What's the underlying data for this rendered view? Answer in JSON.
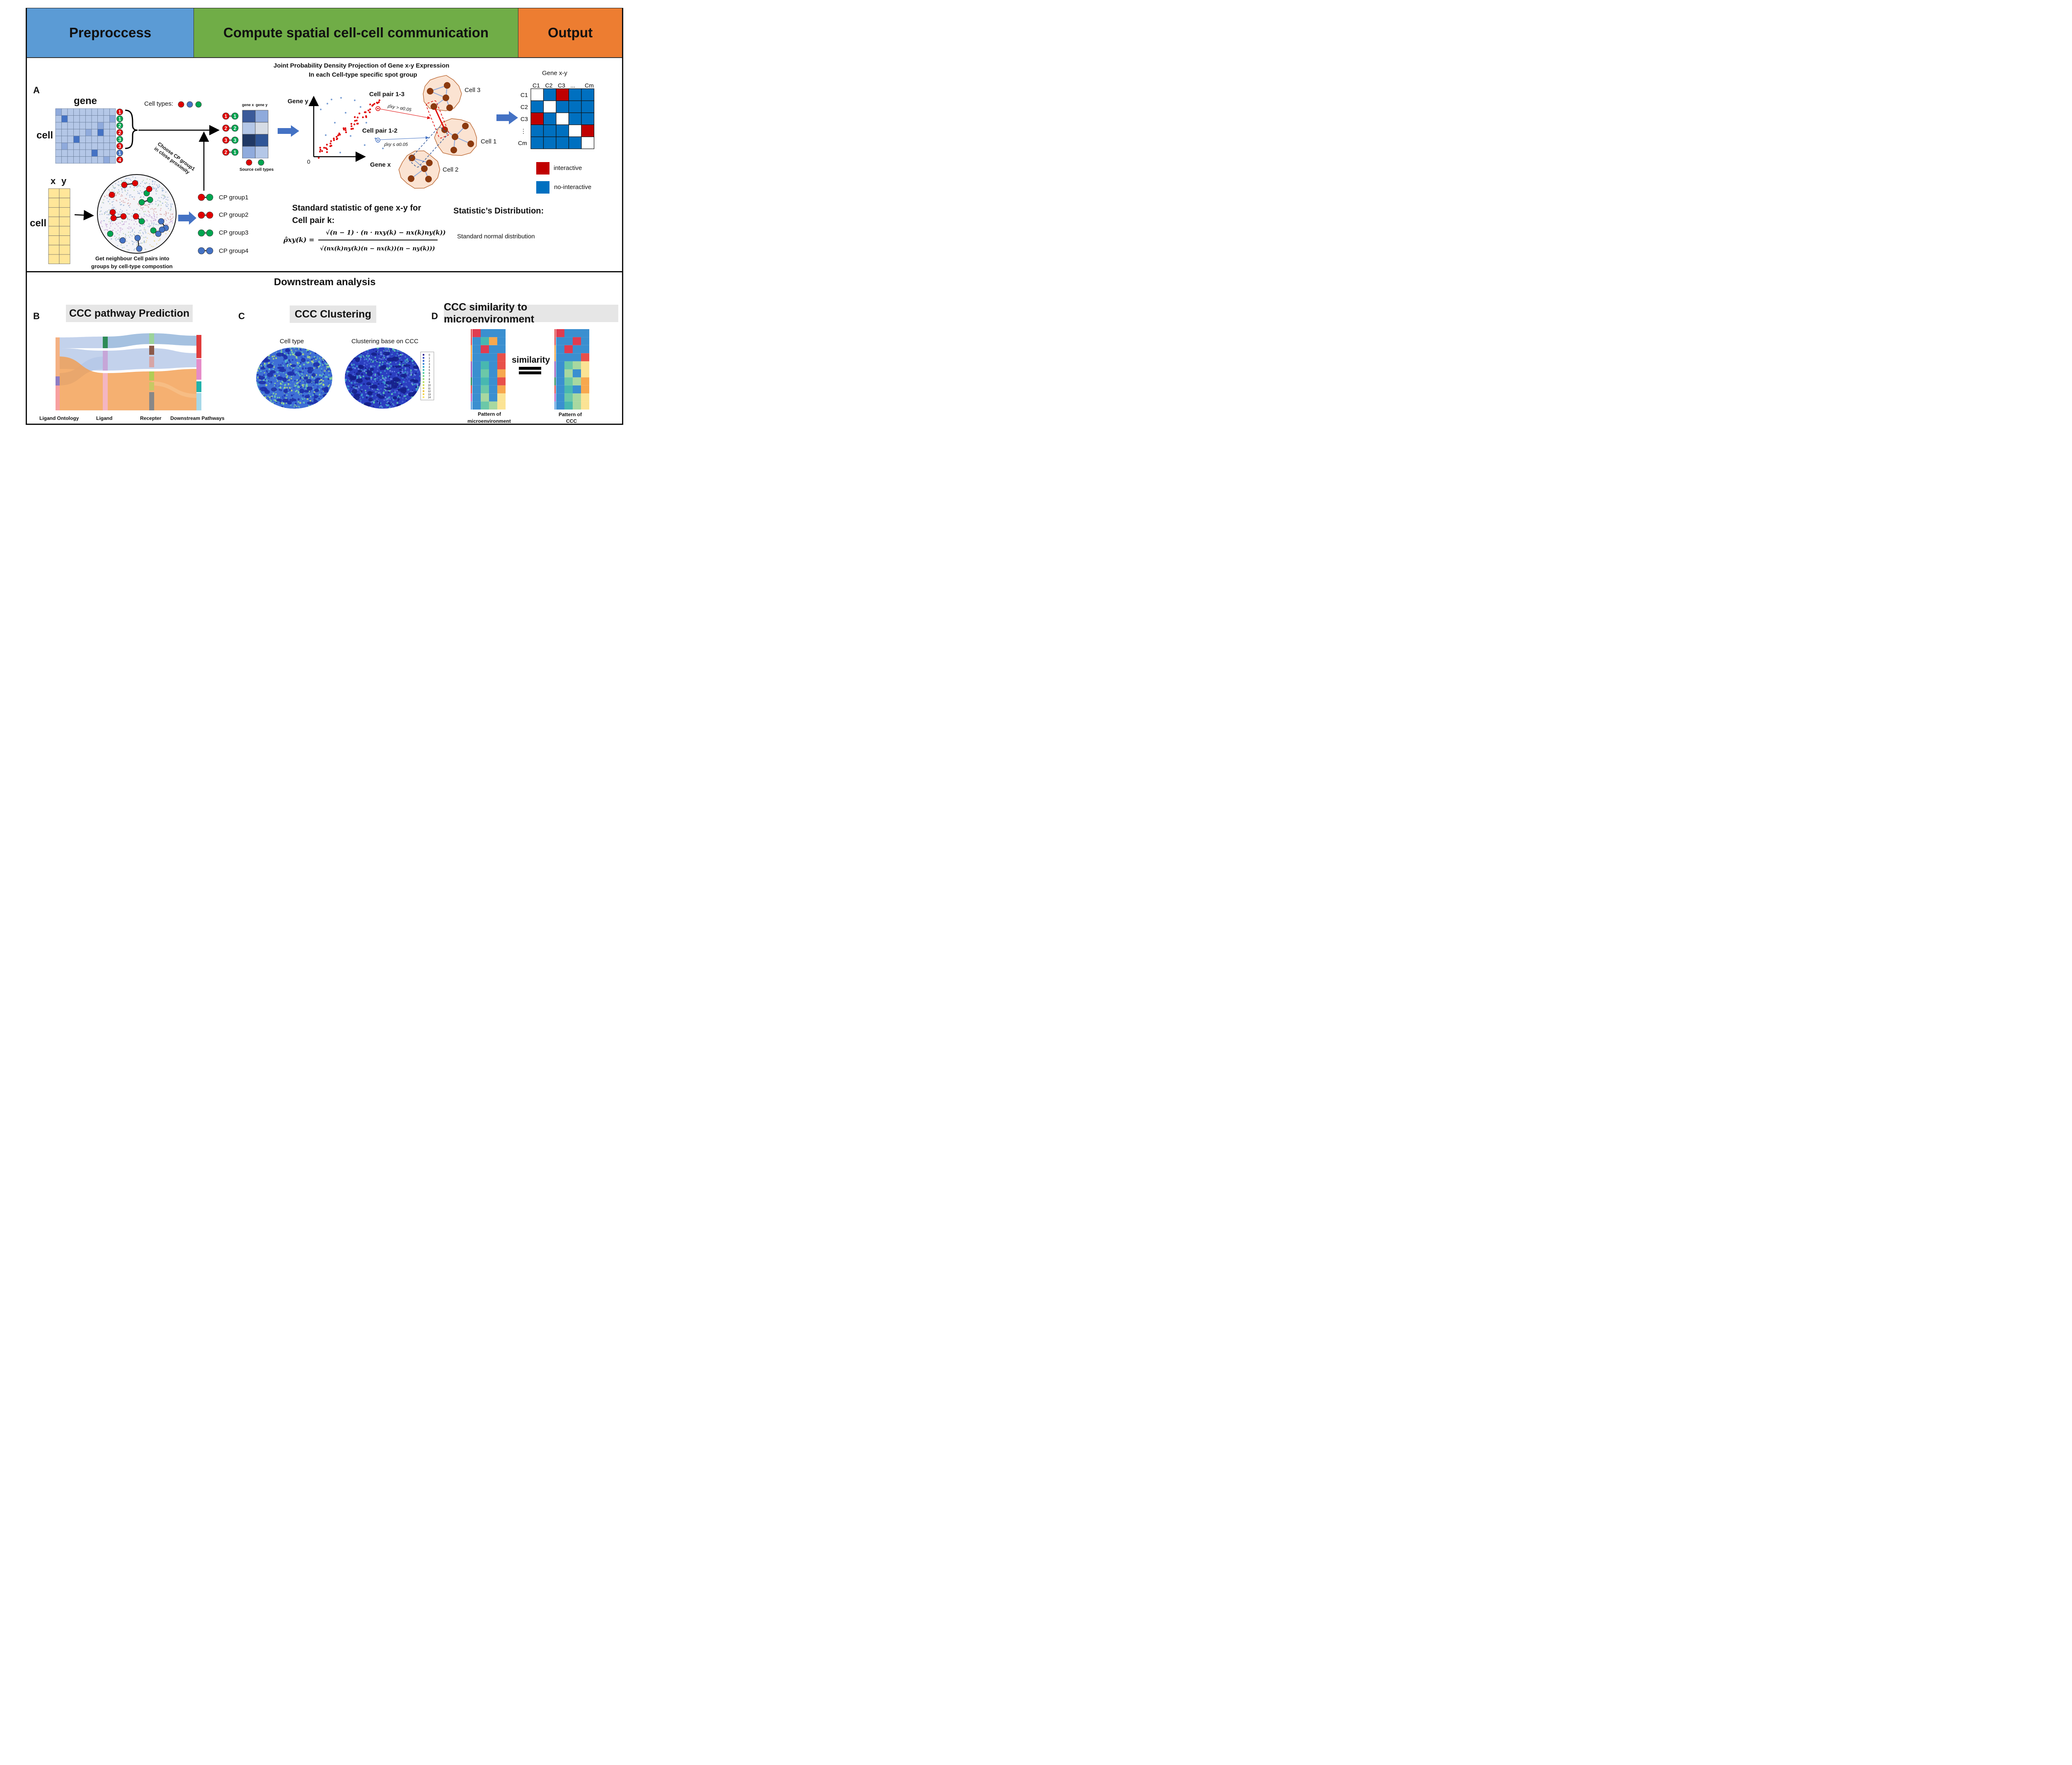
{
  "header": {
    "preprocess": "Preproccess",
    "compute": "Compute spatial cell-cell communication",
    "output": "Output",
    "colors": {
      "preprocess": "#5b9bd5",
      "compute": "#70ad47",
      "output": "#ed7d31"
    }
  },
  "panelA": {
    "letter": "A",
    "jpd_title_line1": "Joint Probability Density Projection of Gene x-y Expression",
    "jpd_title_line2": "In each Cell-type specific spot group",
    "gene_label": "gene",
    "cell_label": "cell",
    "cell_types_label": "Cell types",
    "cell_types_colon": ":",
    "row_badges": [
      "1",
      "1",
      "2",
      "2",
      "3",
      "3",
      "1",
      "4"
    ],
    "xy_x": "x",
    "xy_y": "y",
    "xy_cell_label": "cell",
    "arrow_text_line1": "Choose CP group1",
    "arrow_text_line2": "in close proximity",
    "gene_x_col": "gene x",
    "gene_y_col": "gene y",
    "source_cell_types": "Source cell types",
    "pair_badges": [
      [
        "1",
        "1"
      ],
      [
        "2",
        "2"
      ],
      [
        "3",
        "3"
      ],
      [
        "2",
        "1"
      ]
    ],
    "neighbour_caption_line1": "Get neighbour Cell pairs into",
    "neighbour_caption_line2": "groups by cell-type compostion",
    "cp_groups": [
      "CP group1",
      "CP group2",
      "CP group3",
      "CP group4"
    ],
    "axis_gene_y": "Gene y",
    "axis_gene_x": "Gene x",
    "axis_zero": "0",
    "cell_pair_13": "Cell pair 1-3",
    "cell_pair_12": "Cell pair 1-2",
    "rho_gt": "ρ̂xy > α0.05",
    "rho_le": "ρ̂xy ≤ α0.05",
    "cell1": "Cell 1",
    "cell2": "Cell 2",
    "cell3": "Cell 3",
    "statistic_title_line1": "Standard statistic of gene x-y for",
    "statistic_title_line2": "Cell pair k:",
    "formula_lhs": "ρ̂xy(k) =",
    "formula_num": "√(n − 1) · (n · nxy(k) − nx(k)ny(k))",
    "formula_den": "√(nx(k)ny(k)(n − nx(k))(n − ny(k)))",
    "distribution_title": "Statistic’s Distribution:",
    "distribution_text": "Standard normal distribution",
    "output_title": "Gene x-y",
    "matrix_cols": [
      "C1",
      "C2",
      "C3",
      "...",
      "Cm"
    ],
    "matrix_rows": [
      "C1",
      "C2",
      "C3",
      "⋮",
      "Cm"
    ],
    "matrix": [
      [
        "w",
        "b",
        "r",
        "b",
        "b"
      ],
      [
        "b",
        "w",
        "b",
        "b",
        "b"
      ],
      [
        "r",
        "b",
        "w",
        "b",
        "b"
      ],
      [
        "b",
        "b",
        "b",
        "w",
        "r"
      ],
      [
        "b",
        "b",
        "b",
        "b",
        "w"
      ]
    ],
    "legend_interactive": "interactive",
    "legend_no_interactive": "no-interactive",
    "colors": {
      "interactive": "#c00000",
      "no_interactive": "#0070c0",
      "cell_red": "#e00000",
      "cell_green": "#00a550",
      "cell_blue": "#4472c4",
      "matrix_light": "#b4c7e7",
      "matrix_mid": "#8faadc",
      "xy_table": "#ffe699"
    }
  },
  "downstream": {
    "title": "Downstream analysis",
    "B": {
      "letter": "B",
      "title": "CCC pathway Prediction",
      "axis_labels": [
        "Ligand Ontology",
        "Ligand",
        "Recepter",
        "Downstream Pathways"
      ]
    },
    "C": {
      "letter": "C",
      "title": "CCC Clustering",
      "left_caption": "Cell type",
      "right_caption": "Clustering base on CCC",
      "legend": [
        "0",
        "1",
        "2",
        "3",
        "4",
        "5",
        "6",
        "7",
        "8",
        "9",
        "10",
        "11",
        "12",
        "13",
        "14"
      ]
    },
    "D": {
      "letter": "D",
      "title": "CCC similarity to microenvironment",
      "similarity": "similarity",
      "left_caption_line1": "Pattern of",
      "left_caption_line2": "microenvironment",
      "right_caption_line1": "Pattern of",
      "right_caption_line2": "CCC"
    }
  }
}
